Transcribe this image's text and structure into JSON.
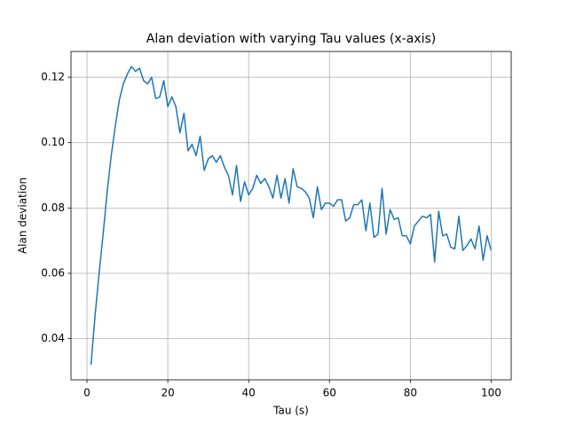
{
  "chart_data": {
    "type": "line",
    "title": "Alan deviation with varying Tau values (x-axis)",
    "xlabel": "Tau (s)",
    "ylabel": "Alan deviation",
    "x": [
      1,
      2,
      3,
      4,
      5,
      6,
      7,
      8,
      9,
      10,
      11,
      12,
      13,
      14,
      15,
      16,
      17,
      18,
      19,
      20,
      21,
      22,
      23,
      24,
      25,
      26,
      27,
      28,
      29,
      30,
      31,
      32,
      33,
      34,
      35,
      36,
      37,
      38,
      39,
      40,
      41,
      42,
      43,
      44,
      45,
      46,
      47,
      48,
      49,
      50,
      51,
      52,
      53,
      54,
      55,
      56,
      57,
      58,
      59,
      60,
      61,
      62,
      63,
      64,
      65,
      66,
      67,
      68,
      69,
      70,
      71,
      72,
      73,
      74,
      75,
      76,
      77,
      78,
      79,
      80,
      81,
      82,
      83,
      84,
      85,
      86,
      87,
      88,
      89,
      90,
      91,
      92,
      93,
      94,
      95,
      96,
      97,
      98,
      99,
      100
    ],
    "series": [
      {
        "name": "Alan deviation",
        "color": "#1f77b4",
        "values": [
          0.032,
          0.047,
          0.06,
          0.072,
          0.085,
          0.096,
          0.105,
          0.113,
          0.118,
          0.121,
          0.1233,
          0.1218,
          0.1228,
          0.119,
          0.118,
          0.12,
          0.1135,
          0.114,
          0.119,
          0.111,
          0.114,
          0.111,
          0.103,
          0.109,
          0.0975,
          0.0995,
          0.096,
          0.102,
          0.0915,
          0.095,
          0.096,
          0.094,
          0.096,
          0.0925,
          0.09,
          0.084,
          0.093,
          0.082,
          0.088,
          0.084,
          0.086,
          0.09,
          0.0875,
          0.089,
          0.0865,
          0.083,
          0.09,
          0.083,
          0.089,
          0.0815,
          0.092,
          0.0865,
          0.086,
          0.085,
          0.083,
          0.077,
          0.0865,
          0.0795,
          0.0815,
          0.0815,
          0.0805,
          0.0825,
          0.0825,
          0.076,
          0.077,
          0.081,
          0.081,
          0.0825,
          0.073,
          0.0815,
          0.071,
          0.072,
          0.086,
          0.072,
          0.0795,
          0.0765,
          0.077,
          0.0715,
          0.0715,
          0.069,
          0.0745,
          0.076,
          0.0775,
          0.077,
          0.078,
          0.0635,
          0.079,
          0.0715,
          0.072,
          0.068,
          0.0675,
          0.0775,
          0.067,
          0.0685,
          0.0705,
          0.0675,
          0.0745,
          0.064,
          0.0715,
          0.067
        ]
      }
    ],
    "xlim": [
      -3.95,
      104.95
    ],
    "ylim": [
      0.0274,
      0.1279
    ],
    "xticks": [
      0,
      20,
      40,
      60,
      80,
      100
    ],
    "yticks": [
      0.04,
      0.06,
      0.08,
      {
        "value": 0.1,
        "label": "0.10"
      },
      0.12
    ],
    "grid": true
  }
}
